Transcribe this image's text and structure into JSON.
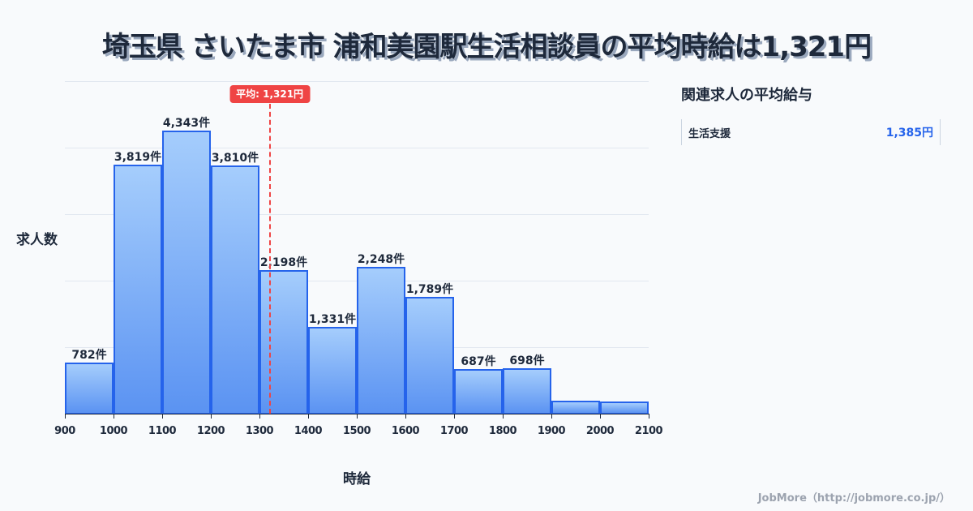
{
  "title": "埼玉県 さいたま市 浦和美園駅生活相談員の平均時給は1,321円",
  "chart": {
    "ylabel": "求人数",
    "xlabel": "時給",
    "average_badge": "平均: 1,321円",
    "average_value": 1321,
    "bar_color": "#2563eb",
    "average_color": "#ef4444"
  },
  "chart_data": {
    "type": "bar",
    "title": "埼玉県 さいたま市 浦和美園駅生活相談員の平均時給は1,321円",
    "xlabel": "時給",
    "ylabel": "求人数",
    "x_ticks": [
      "900",
      "1000",
      "1100",
      "1200",
      "1300",
      "1400",
      "1500",
      "1600",
      "1700",
      "1800",
      "1900",
      "2000",
      "2100"
    ],
    "categories": [
      "900-1000",
      "1000-1100",
      "1100-1200",
      "1200-1300",
      "1300-1400",
      "1400-1500",
      "1500-1600",
      "1600-1700",
      "1700-1800",
      "1800-1900",
      "1900-2000",
      "2000-2100"
    ],
    "values": [
      782,
      3819,
      4343,
      3810,
      2198,
      1331,
      2248,
      1789,
      687,
      698,
      195,
      190
    ],
    "labels": [
      "782件",
      "3,819件",
      "4,343件",
      "3,810件",
      "2,198件",
      "1,331件",
      "2,248件",
      "1,789件",
      "687件",
      "698件",
      "",
      ""
    ],
    "annotations": [
      {
        "type": "vline",
        "x": 1321,
        "label": "平均: 1,321円"
      }
    ],
    "grid": true,
    "xlim": [
      900,
      2100
    ]
  },
  "side_panel": {
    "title": "関連求人の平均給与",
    "items": [
      {
        "label": "生活支援",
        "value": "1,385円"
      }
    ]
  },
  "footer": "JobMore（http://jobmore.co.jp/）"
}
